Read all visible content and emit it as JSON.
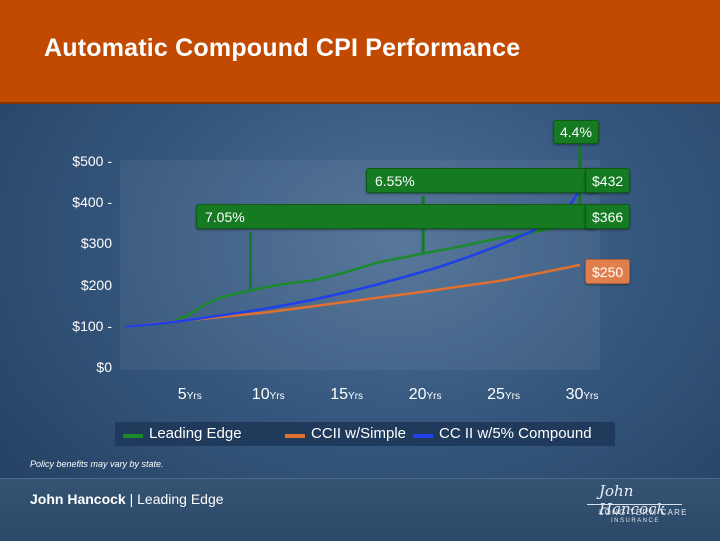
{
  "header": {
    "title": "Automatic Compound CPI Performance"
  },
  "colors": {
    "leading_edge": "#1b8a2a",
    "ccii_simple": "#e0702e",
    "cc_compound": "#1f3fe8",
    "header_bg": "#c14a00"
  },
  "chart_data": {
    "type": "line",
    "title": "",
    "xlabel": "",
    "ylabel": "",
    "xlim": [
      1,
      30
    ],
    "ylim": [
      0,
      500
    ],
    "y_ticks": [
      {
        "value": 500,
        "label": "$500 -"
      },
      {
        "value": 400,
        "label": "$400 -"
      },
      {
        "value": 300,
        "label": "$300"
      },
      {
        "value": 200,
        "label": "$200"
      },
      {
        "value": 100,
        "label": "$100 -"
      },
      {
        "value": 0,
        "label": "$0"
      }
    ],
    "x_ticks": [
      {
        "value": 5,
        "label": "5",
        "unit": "Yrs"
      },
      {
        "value": 10,
        "label": "10",
        "unit": "Yrs"
      },
      {
        "value": 15,
        "label": "15",
        "unit": "Yrs"
      },
      {
        "value": 20,
        "label": "20",
        "unit": "Yrs"
      },
      {
        "value": 25,
        "label": "25",
        "unit": "Yrs"
      },
      {
        "value": 30,
        "label": "30",
        "unit": "Yrs"
      }
    ],
    "grid": false,
    "legend_position": "bottom",
    "series": [
      {
        "name": "Leading Edge",
        "color": "#1b8a2a",
        "x": [
          1,
          2,
          3,
          4,
          5,
          6,
          7,
          8,
          9,
          10,
          11,
          12,
          13,
          14,
          15,
          16,
          17,
          18,
          19,
          20,
          21,
          22,
          23,
          24,
          25,
          26,
          27,
          28,
          29,
          30
        ],
        "y": [
          100,
          103,
          107,
          112,
          128,
          152,
          170,
          180,
          188,
          196,
          203,
          208,
          213,
          222,
          232,
          243,
          255,
          263,
          270,
          278,
          285,
          292,
          300,
          308,
          316,
          322,
          330,
          337,
          345,
          366
        ]
      },
      {
        "name": "CCII w/Simple",
        "color": "#e0702e",
        "x": [
          1,
          5,
          10,
          15,
          20,
          25,
          30
        ],
        "y": [
          100,
          116,
          135,
          160,
          185,
          212,
          250
        ]
      },
      {
        "name": "CC II w/5% Compound",
        "color": "#1f3fe8",
        "x": [
          1,
          3,
          5,
          7,
          9,
          11,
          13,
          15,
          17,
          19,
          21,
          23,
          25,
          27,
          29,
          30
        ],
        "y": [
          100,
          107,
          116,
          127,
          138,
          151,
          166,
          183,
          202,
          223,
          245,
          271,
          300,
          333,
          375,
          432
        ]
      }
    ],
    "annotations": [
      {
        "text": "4.4%",
        "style": "green",
        "points_to": {
          "x": 30,
          "y": 366
        }
      },
      {
        "text": "6.55%",
        "style": "green",
        "points_to": {
          "x": 20,
          "y": 278
        }
      },
      {
        "text": "7.05%",
        "style": "green",
        "points_to": {
          "x": 9,
          "y": 188
        }
      },
      {
        "text": "$432",
        "style": "green",
        "points_to": {
          "x": 30,
          "y": 432
        }
      },
      {
        "text": "$366",
        "style": "green",
        "points_to": {
          "x": 30,
          "y": 366
        }
      },
      {
        "text": "$250",
        "style": "orange",
        "points_to": {
          "x": 30,
          "y": 250
        }
      }
    ]
  },
  "footnote": "Policy benefits may vary by state.",
  "footer": {
    "brand_name": "John Hancock",
    "separator": " | ",
    "product": "Leading Edge",
    "logo_signature": "John Hancock",
    "logo_line1": "LONG TERM CARE",
    "logo_line2": "INSURANCE"
  }
}
